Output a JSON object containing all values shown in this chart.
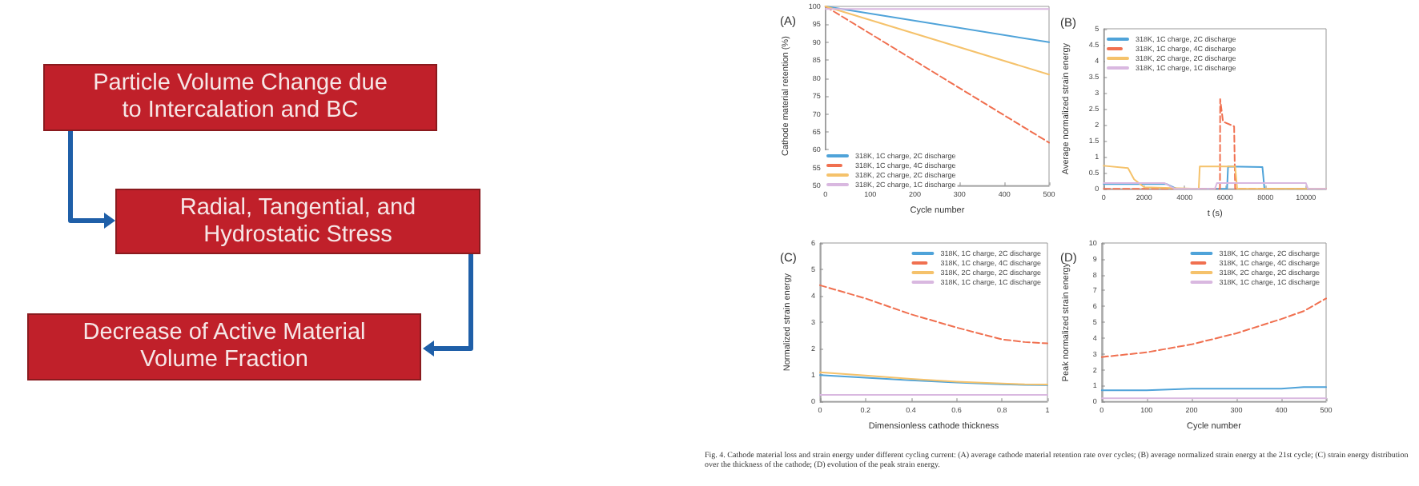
{
  "chart_data": [
    {
      "type": "other",
      "annotations": [
        "Particle Volume Change due to Intercalation and BC",
        "Radial, Tangential, and Hydrostatic Stress",
        "Decrease of Active Material Volume Fraction"
      ]
    },
    {
      "type": "line",
      "title": "(A)",
      "xlabel": "Cycle number",
      "ylabel": "Cathode material retention (%)",
      "xlim": [
        0,
        500
      ],
      "xticks": [
        0,
        100,
        200,
        300,
        400,
        500
      ],
      "ylim": [
        50,
        100
      ],
      "yticks": [
        50,
        55,
        60,
        65,
        70,
        75,
        80,
        85,
        90,
        95,
        100
      ],
      "legend": "bottom left",
      "marker": "none",
      "x": [
        0,
        500
      ],
      "series": [
        {
          "name": "318K, 1C charge, 2C discharge",
          "color": "#4fa3d9",
          "values": [
            100,
            90
          ]
        },
        {
          "name": "318K, 1C charge, 4C discharge",
          "color": "#f07050",
          "line_style": "dashed",
          "values": [
            100,
            62
          ]
        },
        {
          "name": "318K, 2C charge, 2C discharge",
          "color": "#f5c26b",
          "values": [
            100,
            81
          ]
        },
        {
          "name": "318K, 2C charge, 1C discharge",
          "color": "#d9b8e0",
          "values": [
            99.3,
            99.3
          ]
        }
      ]
    },
    {
      "type": "line",
      "title": "(B)",
      "xlabel": "t (s)",
      "ylabel": "Average normalized strain energy",
      "xlim": [
        0,
        11000
      ],
      "xticks": [
        0,
        2000,
        4000,
        6000,
        8000,
        10000
      ],
      "ylim": [
        0,
        5
      ],
      "yticks": [
        0,
        0.5,
        1,
        1.5,
        2,
        2.5,
        3,
        3.5,
        4,
        4.5,
        5
      ],
      "legend": "top left",
      "marker": "none",
      "series": [
        {
          "name": "318K, 1C charge, 2C discharge",
          "color": "#4fa3d9",
          "x": [
            0,
            2800,
            3100,
            3600,
            6100,
            6150,
            7850,
            7950,
            11000
          ],
          "values": [
            0.15,
            0.15,
            0.15,
            0,
            0,
            0.7,
            0.68,
            0,
            0
          ]
        },
        {
          "name": "318K, 1C charge, 4C discharge",
          "color": "#f07050",
          "line_style": "dashed",
          "x": [
            0,
            5750,
            5760,
            5900,
            6450,
            6500,
            11000
          ],
          "values": [
            0,
            0,
            2.8,
            2.1,
            1.95,
            0,
            0
          ]
        },
        {
          "name": "318K, 2C charge, 2C discharge",
          "color": "#f5c26b",
          "x": [
            0,
            1200,
            1500,
            2000,
            4700,
            4750,
            6500,
            6600,
            11000
          ],
          "values": [
            0.72,
            0.65,
            0.3,
            0.05,
            0,
            0.7,
            0.7,
            0,
            0
          ]
        },
        {
          "name": "318K, 1C charge, 1C discharge",
          "color": "#d9b8e0",
          "x": [
            0,
            3000,
            3500,
            5500,
            5600,
            10000,
            10100,
            11000
          ],
          "values": [
            0.18,
            0.18,
            0,
            0,
            0.18,
            0.18,
            0,
            0
          ]
        }
      ]
    },
    {
      "type": "line",
      "title": "(C)",
      "xlabel": "Dimensionless cathode thickness",
      "ylabel": "Normalized strain energy",
      "xlim": [
        0,
        1
      ],
      "xticks": [
        0,
        0.2,
        0.4,
        0.6,
        0.8,
        1
      ],
      "ylim": [
        0,
        6
      ],
      "yticks": [
        0,
        1,
        2,
        3,
        4,
        5,
        6
      ],
      "legend": "top right",
      "marker": "none",
      "x": [
        0,
        0.2,
        0.4,
        0.6,
        0.8,
        0.9,
        1
      ],
      "series": [
        {
          "name": "318K, 1C charge, 2C discharge",
          "color": "#4fa3d9",
          "values": [
            1.0,
            0.9,
            0.8,
            0.72,
            0.65,
            0.63,
            0.62
          ]
        },
        {
          "name": "318K, 1C charge, 4C discharge",
          "color": "#f07050",
          "line_style": "dashed",
          "values": [
            4.4,
            3.9,
            3.3,
            2.8,
            2.35,
            2.25,
            2.2
          ]
        },
        {
          "name": "318K, 2C charge, 2C discharge",
          "color": "#f5c26b",
          "values": [
            1.1,
            0.98,
            0.85,
            0.75,
            0.68,
            0.65,
            0.64
          ]
        },
        {
          "name": "318K, 1C charge, 1C discharge",
          "color": "#d9b8e0",
          "values": [
            0.25,
            0.25,
            0.25,
            0.25,
            0.25,
            0.25,
            0.25
          ]
        }
      ]
    },
    {
      "type": "line",
      "title": "(D)",
      "xlabel": "Cycle number",
      "ylabel": "Peak normalized strain energy",
      "xlim": [
        0,
        500
      ],
      "xticks": [
        0,
        100,
        200,
        300,
        400,
        500
      ],
      "ylim": [
        0,
        10
      ],
      "yticks": [
        0,
        1,
        2,
        3,
        4,
        5,
        6,
        7,
        8,
        9,
        10
      ],
      "legend": "top right",
      "marker": "none",
      "x": [
        0,
        100,
        200,
        300,
        400,
        450,
        500
      ],
      "series": [
        {
          "name": "318K, 1C charge, 2C discharge",
          "color": "#4fa3d9",
          "values": [
            0.7,
            0.7,
            0.8,
            0.8,
            0.8,
            0.9,
            0.9
          ]
        },
        {
          "name": "318K, 1C charge, 4C discharge",
          "color": "#f07050",
          "line_style": "dashed",
          "values": [
            2.8,
            3.1,
            3.6,
            4.3,
            5.2,
            5.7,
            6.5
          ]
        },
        {
          "name": "318K, 2C charge, 2C discharge",
          "color": "#f5c26b",
          "values": [
            null,
            null,
            null,
            null,
            null,
            null,
            null
          ]
        },
        {
          "name": "318K, 1C charge, 1C discharge",
          "color": "#d9b8e0",
          "values": [
            0.2,
            0.2,
            0.2,
            0.2,
            0.2,
            0.2,
            0.2
          ]
        }
      ],
      "annotations": [
        "Fig. 4. Cathode material loss and strain energy under different cycling current: (A) average cathode material retention rate over cycles; (B) average normalized strain energy at the 21st cycle; (C) strain energy distribution over the thickness of the cathode; (D) evolution of the peak strain energy."
      ]
    }
  ]
}
